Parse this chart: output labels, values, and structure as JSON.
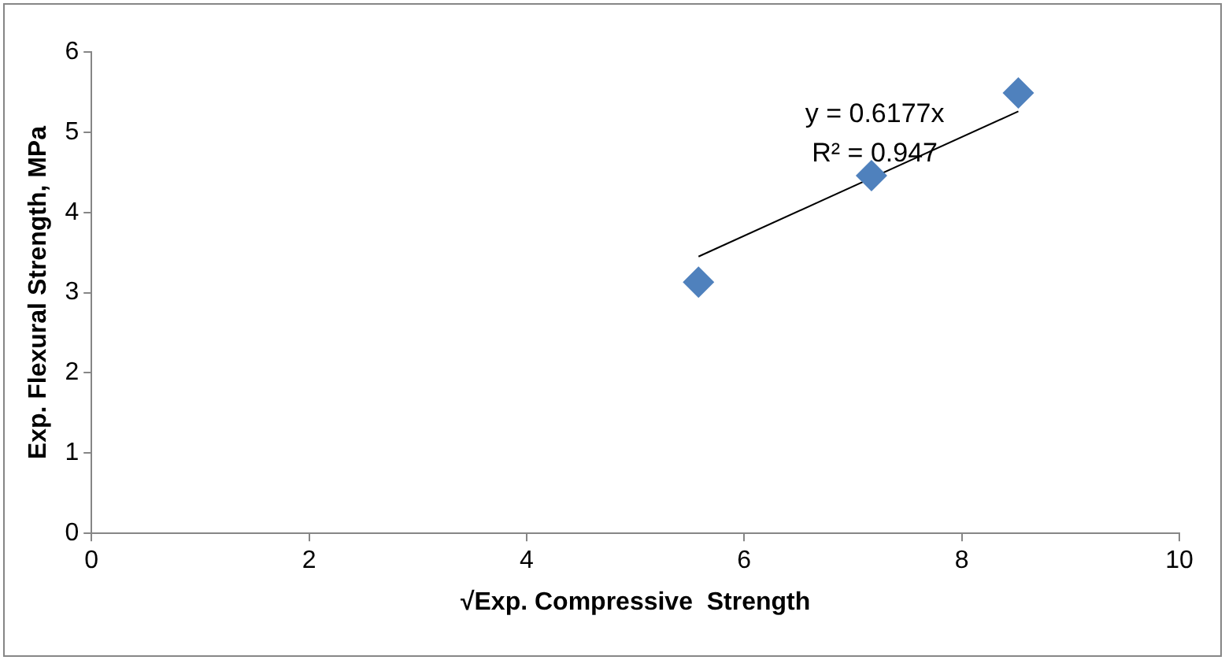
{
  "chart_data": {
    "type": "scatter",
    "xlabel": "√Exp. Compressive  Strength",
    "ylabel": "Exp. Flexural Strength, MPa",
    "x": [
      5.58,
      7.17,
      8.52
    ],
    "series": [
      {
        "type": "scatter",
        "color": "#4f81bd",
        "values": [
          3.13,
          4.46,
          5.49
        ],
        "marker": "diamond"
      },
      {
        "type": "line",
        "color": "#000000",
        "x": [
          5.58,
          8.52
        ],
        "values": [
          3.45,
          5.26
        ],
        "marker": "none"
      }
    ],
    "xlim": [
      0,
      10
    ],
    "xticks": [
      0,
      2,
      4,
      6,
      8,
      10
    ],
    "ylim": [
      0,
      6
    ],
    "yticks": [
      0,
      1,
      2,
      3,
      4,
      5,
      6
    ],
    "annotations": [
      "y = 0.6177x",
      "R² = 0.947"
    ]
  }
}
